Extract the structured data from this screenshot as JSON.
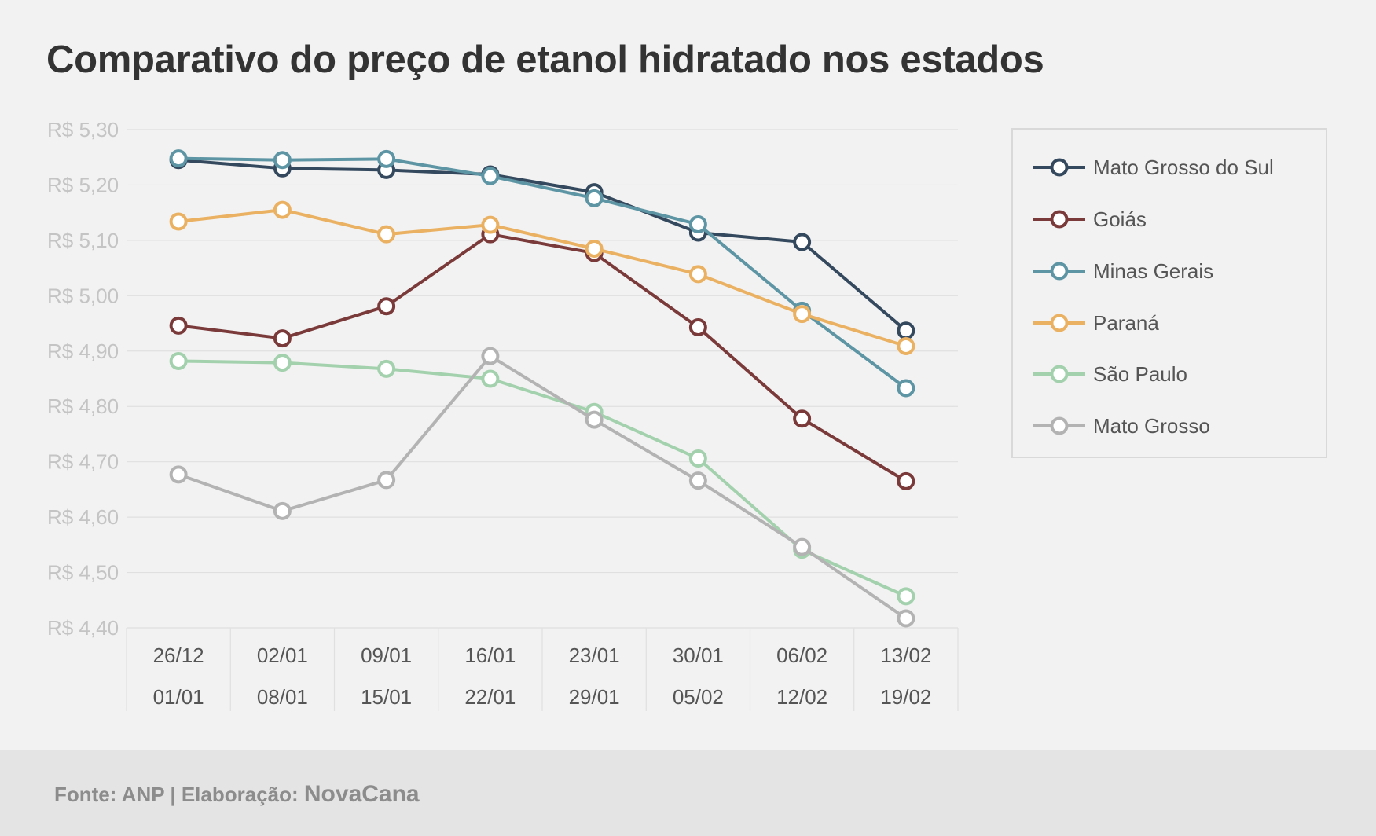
{
  "chart_data": {
    "type": "line",
    "title": "Comparativo do preço de etanol hidratado nos estados",
    "x_top": [
      "26/12",
      "02/01",
      "09/01",
      "16/01",
      "23/01",
      "30/01",
      "06/02",
      "13/02"
    ],
    "x_bottom": [
      "01/01",
      "08/01",
      "15/01",
      "22/01",
      "29/01",
      "05/02",
      "12/02",
      "19/02"
    ],
    "y_ticks": [
      "R$ 5,30",
      "R$ 5,20",
      "R$ 5,10",
      "R$ 5,00",
      "R$ 4,90",
      "R$ 4,80",
      "R$ 4,70",
      "R$ 4,60",
      "R$ 4,50",
      "R$ 4,40"
    ],
    "ylim": [
      4.4,
      5.3
    ],
    "grid": true,
    "legend_position": "right",
    "series": [
      {
        "name": "Mato Grosso do Sul",
        "color": "#34495e",
        "values": [
          5.245,
          5.23,
          5.227,
          5.219,
          5.187,
          5.114,
          5.097,
          4.937
        ]
      },
      {
        "name": "Goiás",
        "color": "#7b3a3a",
        "values": [
          4.946,
          4.923,
          4.981,
          5.111,
          5.077,
          4.943,
          4.778,
          4.665
        ]
      },
      {
        "name": "Minas Gerais",
        "color": "#5d95a4",
        "values": [
          5.248,
          5.245,
          5.247,
          5.216,
          5.176,
          5.129,
          4.973,
          4.833
        ]
      },
      {
        "name": "Paraná",
        "color": "#ebb163",
        "values": [
          5.134,
          5.155,
          5.111,
          5.128,
          5.085,
          5.039,
          4.967,
          4.909
        ]
      },
      {
        "name": "São Paulo",
        "color": "#a3d1ad",
        "values": [
          4.882,
          4.879,
          4.868,
          4.85,
          4.79,
          4.706,
          4.541,
          4.457
        ]
      },
      {
        "name": "Mato Grosso",
        "color": "#b3b3b3",
        "values": [
          4.677,
          4.611,
          4.667,
          4.891,
          4.776,
          4.666,
          4.546,
          4.417
        ]
      }
    ]
  },
  "footer": {
    "source": "Fonte: ANP | Elaboração: ",
    "brand": "NovaCana"
  }
}
